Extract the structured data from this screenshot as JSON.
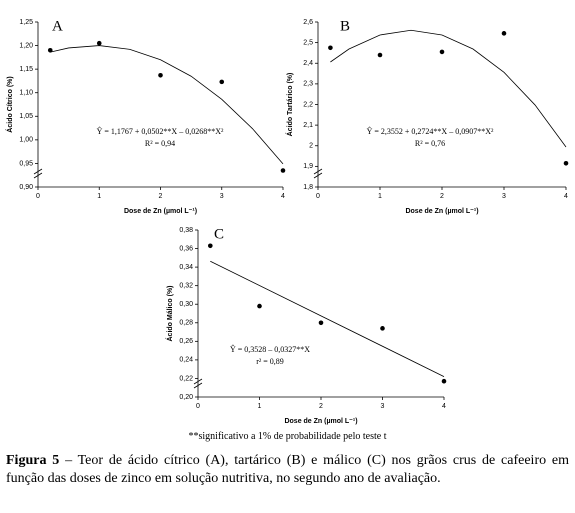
{
  "chart_data": [
    {
      "type": "scatter",
      "title": "A",
      "xlabel": "Dose de Zn (µmol L⁻¹)",
      "ylabel": "Ácido Cítrico (%)",
      "equation": "Ŷ = 1,1767 + 0,0502**X – 0,0268**X²",
      "r2": "R² = 0,94",
      "x": [
        0.2,
        1,
        2,
        3,
        4
      ],
      "values": [
        1.19,
        1.205,
        1.137,
        1.123,
        0.935
      ],
      "color": "#000000",
      "fit": {
        "x": [
          0.2,
          0.5,
          1,
          1.5,
          2,
          2.5,
          3,
          3.5,
          4
        ],
        "values": [
          1.186,
          1.195,
          1.2,
          1.192,
          1.17,
          1.135,
          1.086,
          1.024,
          0.949
        ]
      },
      "xlim": [
        0,
        4
      ],
      "xticks": [
        0,
        1,
        2,
        3,
        4
      ],
      "ylim": [
        0.9,
        1.25
      ],
      "yticks": [
        {
          "value": 0.9,
          "label": "0,90"
        },
        {
          "value": 0.95,
          "label": "0,95"
        },
        {
          "value": 1.0,
          "label": "1,00"
        },
        {
          "value": 1.05,
          "label": "1,05"
        },
        {
          "value": 1.1,
          "label": "1,10"
        },
        {
          "value": 1.15,
          "label": "1,15"
        },
        {
          "value": 1.2,
          "label": "1,20"
        },
        {
          "value": 1.25,
          "label": "1,25"
        }
      ]
    },
    {
      "type": "scatter",
      "title": "B",
      "xlabel": "Dose de Zn (µmol L⁻¹)",
      "ylabel": "Ácido Tartárico (%)",
      "equation": "Ŷ = 2,3552 + 0,2724**X – 0,0907**X²",
      "r2": "R² = 0,76",
      "x": [
        0.2,
        1,
        2,
        3,
        4
      ],
      "values": [
        2.475,
        2.44,
        2.455,
        2.545,
        1.915
      ],
      "color": "#000000",
      "fit": {
        "x": [
          0.2,
          0.5,
          1,
          1.5,
          2,
          2.5,
          3,
          3.5,
          4
        ],
        "values": [
          2.406,
          2.469,
          2.537,
          2.56,
          2.537,
          2.469,
          2.356,
          2.198,
          1.994
        ]
      },
      "xlim": [
        0,
        4
      ],
      "xticks": [
        0,
        1,
        2,
        3,
        4
      ],
      "ylim": [
        1.8,
        2.6
      ],
      "yticks": [
        {
          "value": 1.8,
          "label": "1,8"
        },
        {
          "value": 1.9,
          "label": "1,9"
        },
        2,
        {
          "value": 2.1,
          "label": "2,1"
        },
        {
          "value": 2.2,
          "label": "2,2"
        },
        {
          "value": 2.3,
          "label": "2,3"
        },
        {
          "value": 2.4,
          "label": "2,4"
        },
        {
          "value": 2.5,
          "label": "2,5"
        },
        {
          "value": 2.6,
          "label": "2,6"
        }
      ]
    },
    {
      "type": "scatter",
      "title": "C",
      "xlabel": "Dose de Zn (µmol L⁻¹)",
      "ylabel": "Ácido Málico (%)",
      "equation": "Ŷ = 0,3528 – 0,0327**X",
      "r2": "r² = 0,89",
      "x": [
        0.2,
        1,
        2,
        3,
        4
      ],
      "values": [
        0.363,
        0.298,
        0.28,
        0.274,
        0.217
      ],
      "color": "#000000",
      "fit": {
        "x": [
          0.2,
          4
        ],
        "values": [
          0.3463,
          0.222
        ]
      },
      "xlim": [
        0,
        4
      ],
      "xticks": [
        0,
        1,
        2,
        3,
        4
      ],
      "ylim": [
        0.2,
        0.38
      ],
      "yticks": [
        {
          "value": 0.2,
          "label": "0,20"
        },
        {
          "value": 0.22,
          "label": "0,22"
        },
        {
          "value": 0.24,
          "label": "0,24"
        },
        {
          "value": 0.26,
          "label": "0,26"
        },
        {
          "value": 0.28,
          "label": "0,28"
        },
        {
          "value": 0.3,
          "label": "0,30"
        },
        {
          "value": 0.32,
          "label": "0,32"
        },
        {
          "value": 0.34,
          "label": "0,34"
        },
        {
          "value": 0.36,
          "label": "0,36"
        },
        {
          "value": 0.38,
          "label": "0,38"
        }
      ]
    }
  ],
  "footnote": "**significativo a 1% de probabilidade pelo teste t",
  "caption": {
    "label": "Figura 5",
    "text": "– Teor de ácido cítrico (A), tartárico (B) e málico (C) nos grãos crus de cafeeiro em função das doses de zinco em solução nutritiva, no segundo ano de avaliação."
  }
}
